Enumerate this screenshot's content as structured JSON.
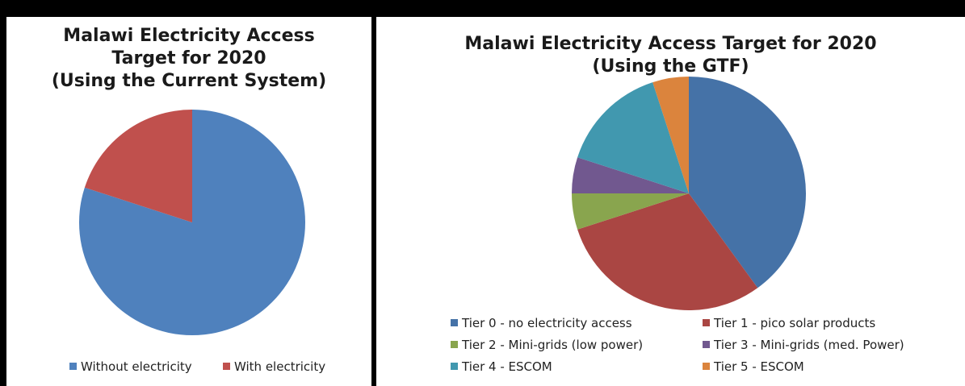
{
  "chart_data": [
    {
      "type": "pie",
      "title": "Malawi Electricity Access\nTarget for 2020\n(Using the Current System)",
      "categories": [
        "Without electricity",
        "With electricity"
      ],
      "values": [
        80,
        20
      ],
      "colors": [
        "#4F81BD",
        "#C0504D"
      ],
      "legend": "bottom"
    },
    {
      "type": "pie",
      "title": "Malawi Electricity Access Target for 2020\n(Using the GTF)",
      "categories": [
        "Tier 0 - no electricity access",
        "Tier 1 - pico solar products",
        "Tier 2 - Mini-grids (low power)",
        "Tier 3 - Mini-grids (med. Power)",
        "Tier 4 - ESCOM",
        "Tier 5 - ESCOM"
      ],
      "values": [
        40,
        30,
        5,
        5,
        15,
        5
      ],
      "colors": [
        "#4572A7",
        "#AA4643",
        "#89A54E",
        "#71588F",
        "#4198AF",
        "#DB843D"
      ],
      "legend": "bottom"
    }
  ]
}
